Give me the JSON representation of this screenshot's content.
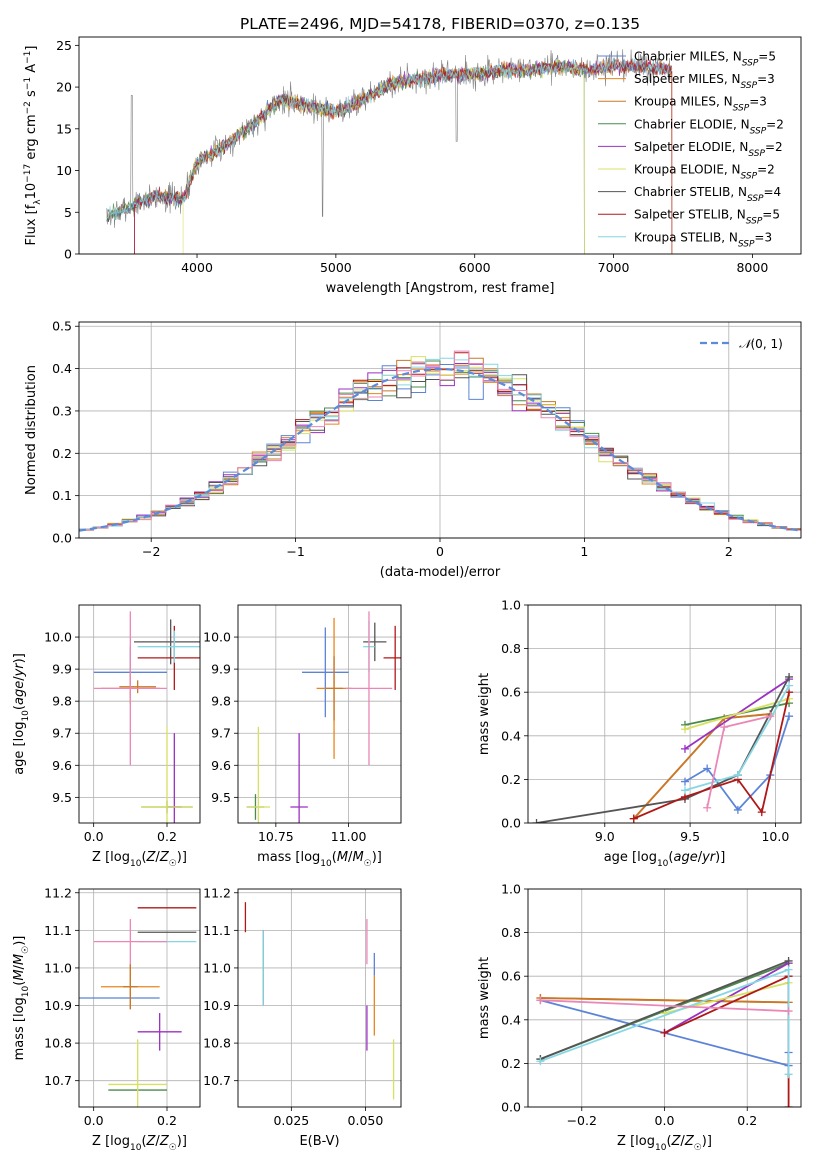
{
  "title": "PLATE=2496, MJD=54178, FIBERID=0370, z=0.135",
  "colors": {
    "chabrier_miles": "#5b84d8",
    "salpeter_miles": "#e8851e",
    "kroupa_miles": "#c8782a",
    "chabrier_elodie": "#4c8a4c",
    "salpeter_elodie": "#9b31c2",
    "kroupa_elodie": "#d8e060",
    "chabrier_stelib": "#555555",
    "salpeter_stelib": "#b01818",
    "kroupa_stelib": "#86d6e4",
    "pink": "#ea87b6",
    "normal": "#5b8bd9"
  },
  "chart_data": [
    {
      "id": "spectrum",
      "type": "line",
      "title": "PLATE=2496, MJD=54178, FIBERID=0370, z=0.135",
      "xlabel": "wavelength [Angstrom, rest frame]",
      "ylabel": "Flux [f_λ10^-17 erg cm^-2 s^-1 A^-1]",
      "xlim": [
        3150,
        8350
      ],
      "ylim": [
        0,
        26
      ],
      "xticks": [
        4000,
        5000,
        6000,
        7000,
        8000
      ],
      "yticks": [
        0,
        5,
        10,
        15,
        20,
        25
      ],
      "legend_position": "top-right",
      "legend": [
        {
          "label": "Chabrier MILES, N_SSP=5",
          "color_key": "chabrier_miles"
        },
        {
          "label": "Salpeter MILES, N_SSP=3",
          "color_key": "salpeter_miles"
        },
        {
          "label": "Kroupa MILES, N_SSP=3",
          "color_key": "kroupa_miles"
        },
        {
          "label": "Chabrier ELODIE, N_SSP=2",
          "color_key": "chabrier_elodie"
        },
        {
          "label": "Salpeter ELODIE, N_SSP=2",
          "color_key": "salpeter_elodie"
        },
        {
          "label": "Kroupa ELODIE, N_SSP=2",
          "color_key": "kroupa_elodie"
        },
        {
          "label": "Chabrier STELIB, N_SSP=4",
          "color_key": "chabrier_stelib"
        },
        {
          "label": "Salpeter STELIB, N_SSP=5",
          "color_key": "salpeter_stelib"
        },
        {
          "label": "Kroupa STELIB, N_SSP=3",
          "color_key": "kroupa_stelib"
        }
      ],
      "continuum_wavelength": [
        3350,
        3500,
        3700,
        3900,
        4000,
        4200,
        4400,
        4600,
        4800,
        5000,
        5200,
        5400,
        5600,
        5800,
        6000,
        6200,
        6400,
        6600,
        6800,
        7000,
        7200,
        7400
      ],
      "continuum_flux": [
        4.5,
        5.5,
        7.0,
        6.5,
        11.0,
        13.0,
        15.5,
        18.5,
        17.8,
        17.0,
        18.5,
        20.5,
        21.0,
        21.5,
        21.5,
        22.0,
        22.0,
        22.5,
        22.0,
        22.5,
        22.5,
        22.0
      ]
    },
    {
      "id": "residuals",
      "type": "step",
      "xlabel": "(data-model)/error",
      "ylabel": "Normed distribution",
      "xlim": [
        -2.5,
        2.5
      ],
      "ylim": [
        0,
        0.51
      ],
      "xticks": [
        -2,
        -1,
        0,
        1,
        2
      ],
      "yticks": [
        0.0,
        0.1,
        0.2,
        0.3,
        0.4,
        0.5
      ],
      "legend_position": "top-right",
      "legend": [
        {
          "label": "𝒩(0, 1)",
          "color_key": "normal"
        }
      ],
      "bin_width": 0.1,
      "grid": true
    },
    {
      "id": "age-vs-Z",
      "type": "errorbar",
      "xlabel": "Z [log10(Z/Z☉)]",
      "ylabel": "age [log10(age/yr)]",
      "xlim": [
        -0.04,
        0.29
      ],
      "ylim": [
        9.42,
        10.1
      ],
      "xticks": [
        0.0,
        0.2
      ],
      "yticks": [
        9.5,
        9.6,
        9.7,
        9.8,
        9.9,
        10.0
      ],
      "grid": true,
      "points": [
        {
          "color_key": "chabrier_miles",
          "x": 0.1,
          "xerr": 0.1,
          "y": 9.89,
          "yerr": 0.08
        },
        {
          "color_key": "salpeter_miles",
          "x": 0.1,
          "xerr": 0.08,
          "y": 9.84,
          "yerr": 0.05
        },
        {
          "color_key": "kroupa_miles",
          "x": 0.12,
          "xerr": 0.05,
          "y": 9.845,
          "yerr": 0.02
        },
        {
          "color_key": "chabrier_elodie",
          "x": 0.2,
          "xerr": 0.07,
          "y": 9.47,
          "yerr": 0.02
        },
        {
          "color_key": "salpeter_elodie",
          "x": 0.22,
          "xerr": 0.02,
          "y": 9.47,
          "yerr": 0.23
        },
        {
          "color_key": "kroupa_elodie",
          "x": 0.2,
          "xerr": 0.07,
          "y": 9.47,
          "yerr": 0.25
        },
        {
          "color_key": "chabrier_stelib",
          "x": 0.21,
          "xerr": 0.1,
          "y": 9.985,
          "yerr": 0.07
        },
        {
          "color_key": "salpeter_stelib",
          "x": 0.22,
          "xerr": 0.1,
          "y": 9.935,
          "yerr": 0.1
        },
        {
          "color_key": "kroupa_stelib",
          "x": 0.22,
          "xerr": 0.1,
          "y": 9.97,
          "yerr": 0.05
        },
        {
          "color_key": "pink",
          "x": 0.1,
          "xerr": 0.1,
          "y": 9.84,
          "yerr": 0.24
        }
      ]
    },
    {
      "id": "age-vs-mass",
      "type": "errorbar",
      "xlabel": "mass [log10(M/M☉)]",
      "xlim": [
        10.62,
        11.18
      ],
      "ylim": [
        9.42,
        10.1
      ],
      "xticks": [
        10.75,
        11.0
      ],
      "yticks": [
        9.5,
        9.6,
        9.7,
        9.8,
        9.9,
        10.0
      ],
      "grid": true,
      "points": [
        {
          "color_key": "chabrier_miles",
          "x": 10.92,
          "xerr": 0.08,
          "y": 9.89,
          "yerr": 0.14
        },
        {
          "color_key": "salpeter_miles",
          "x": 10.95,
          "xerr": 0.06,
          "y": 9.84,
          "yerr": 0.22
        },
        {
          "color_key": "kroupa_miles",
          "x": 10.95,
          "xerr": 0.03,
          "y": 9.84,
          "yerr": 0.1
        },
        {
          "color_key": "chabrier_elodie",
          "x": 10.68,
          "xerr": 0.03,
          "y": 9.47,
          "yerr": 0.04
        },
        {
          "color_key": "salpeter_elodie",
          "x": 10.83,
          "xerr": 0.03,
          "y": 9.47,
          "yerr": 0.23
        },
        {
          "color_key": "kroupa_elodie",
          "x": 10.69,
          "xerr": 0.04,
          "y": 9.47,
          "yerr": 0.25
        },
        {
          "color_key": "chabrier_stelib",
          "x": 11.09,
          "xerr": 0.04,
          "y": 9.985,
          "yerr": 0.06
        },
        {
          "color_key": "salpeter_stelib",
          "x": 11.16,
          "xerr": 0.04,
          "y": 9.935,
          "yerr": 0.1
        },
        {
          "color_key": "kroupa_stelib",
          "x": 11.07,
          "xerr": 0.02,
          "y": 9.97,
          "yerr": 0.08
        },
        {
          "color_key": "pink",
          "x": 11.07,
          "xerr": 0.08,
          "y": 9.84,
          "yerr": 0.24
        }
      ]
    },
    {
      "id": "weight-vs-age",
      "type": "line",
      "xlabel": "age [log10(age/yr)]",
      "ylabel": "mass weight",
      "xlim": [
        8.55,
        10.15
      ],
      "ylim": [
        0,
        1
      ],
      "xticks": [
        9.0,
        9.5,
        10.0
      ],
      "yticks": [
        0.0,
        0.2,
        0.4,
        0.6,
        0.8,
        1.0
      ],
      "grid": true,
      "series": [
        {
          "color_key": "chabrier_miles",
          "x": [
            9.47,
            9.6,
            9.78,
            9.97,
            10.08
          ],
          "y": [
            0.19,
            0.25,
            0.06,
            0.22,
            0.49
          ]
        },
        {
          "color_key": "salpeter_miles",
          "x": [
            9.17,
            9.7,
            9.97
          ],
          "y": [
            0.02,
            0.48,
            0.5
          ]
        },
        {
          "color_key": "kroupa_miles",
          "x": [
            9.17,
            9.7,
            9.97
          ],
          "y": [
            0.02,
            0.48,
            0.5
          ]
        },
        {
          "color_key": "chabrier_elodie",
          "x": [
            9.47,
            10.08
          ],
          "y": [
            0.45,
            0.55
          ]
        },
        {
          "color_key": "salpeter_elodie",
          "x": [
            9.47,
            10.08
          ],
          "y": [
            0.34,
            0.66
          ]
        },
        {
          "color_key": "kroupa_elodie",
          "x": [
            9.47,
            10.08
          ],
          "y": [
            0.43,
            0.57
          ]
        },
        {
          "color_key": "chabrier_stelib",
          "x": [
            8.6,
            9.47,
            9.78,
            10.08
          ],
          "y": [
            0.0,
            0.11,
            0.22,
            0.67
          ]
        },
        {
          "color_key": "salpeter_stelib",
          "x": [
            9.17,
            9.47,
            9.78,
            9.92,
            10.08
          ],
          "y": [
            0.02,
            0.12,
            0.2,
            0.05,
            0.6
          ]
        },
        {
          "color_key": "kroupa_stelib",
          "x": [
            9.47,
            9.78,
            10.08
          ],
          "y": [
            0.15,
            0.22,
            0.63
          ]
        },
        {
          "color_key": "pink",
          "x": [
            9.6,
            9.7,
            9.97
          ],
          "y": [
            0.07,
            0.44,
            0.49
          ]
        }
      ]
    },
    {
      "id": "mass-vs-Z",
      "type": "errorbar",
      "xlabel": "Z [log10(Z/Z☉)]",
      "ylabel": "mass [log10(M/M☉)]",
      "xlim": [
        -0.04,
        0.29
      ],
      "ylim": [
        10.63,
        11.21
      ],
      "xticks": [
        0.0,
        0.2
      ],
      "yticks": [
        10.7,
        10.8,
        10.9,
        11.0,
        11.1,
        11.2
      ],
      "grid": true,
      "points": [
        {
          "color_key": "chabrier_miles",
          "x": 0.07,
          "xerr": 0.11,
          "y": 10.92,
          "yerr": 0.0
        },
        {
          "color_key": "salpeter_miles",
          "x": 0.1,
          "xerr": 0.08,
          "y": 10.95,
          "yerr": 0.06
        },
        {
          "color_key": "kroupa_miles",
          "x": 0.1,
          "xerr": 0.02,
          "y": 10.95,
          "yerr": 0.06
        },
        {
          "color_key": "chabrier_elodie",
          "x": 0.12,
          "xerr": 0.08,
          "y": 10.675,
          "yerr": 0.0
        },
        {
          "color_key": "salpeter_elodie",
          "x": 0.18,
          "xerr": 0.06,
          "y": 10.83,
          "yerr": 0.05
        },
        {
          "color_key": "kroupa_elodie",
          "x": 0.12,
          "xerr": 0.08,
          "y": 10.69,
          "yerr": 0.12
        },
        {
          "color_key": "chabrier_stelib",
          "x": 0.2,
          "xerr": 0.08,
          "y": 11.095,
          "yerr": 0.0
        },
        {
          "color_key": "salpeter_stelib",
          "x": 0.2,
          "xerr": 0.08,
          "y": 11.16,
          "yerr": 0.0
        },
        {
          "color_key": "kroupa_stelib",
          "x": 0.2,
          "xerr": 0.08,
          "y": 11.07,
          "yerr": 0.0
        },
        {
          "color_key": "pink",
          "x": 0.1,
          "xerr": 0.1,
          "y": 11.07,
          "yerr": 0.06
        }
      ]
    },
    {
      "id": "mass-vs-ebv",
      "type": "errorbar",
      "xlabel": "E(B-V)",
      "xlim": [
        0.007,
        0.062
      ],
      "ylim": [
        10.63,
        11.21
      ],
      "xticks": [
        0.025,
        0.05
      ],
      "yticks": [
        10.7,
        10.8,
        10.9,
        11.0,
        11.1,
        11.2
      ],
      "grid": true,
      "points": [
        {
          "color_key": "salpeter_stelib",
          "x": 0.0095,
          "y": 11.135,
          "yerr": 0.04
        },
        {
          "color_key": "chabrier_stelib",
          "x": 0.0155,
          "y": 11.0,
          "yerr": 0.1
        },
        {
          "color_key": "kroupa_stelib",
          "x": 0.0155,
          "y": 11.0,
          "yerr": 0.1
        },
        {
          "color_key": "pink",
          "x": 0.0505,
          "y": 11.07,
          "yerr": 0.06
        },
        {
          "color_key": "salpeter_elodie",
          "x": 0.0505,
          "y": 10.84,
          "yerr": 0.06
        },
        {
          "color_key": "chabrier_miles",
          "x": 0.053,
          "y": 11.01,
          "yerr": 0.03
        },
        {
          "color_key": "salpeter_miles",
          "x": 0.053,
          "y": 10.9,
          "yerr": 0.08
        },
        {
          "color_key": "kroupa_elodie",
          "x": 0.0595,
          "y": 10.73,
          "yerr": 0.08
        }
      ]
    },
    {
      "id": "weight-vs-Z",
      "type": "line",
      "xlabel": "Z [log10(Z/Z☉)]",
      "ylabel": "mass weight",
      "xlim": [
        -0.33,
        0.33
      ],
      "ylim": [
        0,
        1
      ],
      "xticks": [
        -0.2,
        0.0,
        0.2
      ],
      "yticks": [
        0.0,
        0.2,
        0.4,
        0.6,
        0.8,
        1.0
      ],
      "grid": true,
      "series": [
        {
          "color_key": "chabrier_miles",
          "x": [
            -0.3,
            0.3,
            0.3
          ],
          "y": [
            0.49,
            0.19,
            0.25
          ]
        },
        {
          "color_key": "salpeter_miles",
          "x": [
            -0.3,
            0.3
          ],
          "y": [
            0.5,
            0.48
          ]
        },
        {
          "color_key": "kroupa_miles",
          "x": [
            -0.3,
            0.3
          ],
          "y": [
            0.5,
            0.48
          ]
        },
        {
          "color_key": "chabrier_elodie",
          "x": [
            -0.3,
            0.3
          ],
          "y": [
            0.22,
            0.66
          ]
        },
        {
          "color_key": "salpeter_elodie",
          "x": [
            0.0,
            0.3
          ],
          "y": [
            0.34,
            0.66
          ]
        },
        {
          "color_key": "kroupa_elodie",
          "x": [
            0.0,
            0.3
          ],
          "y": [
            0.43,
            0.57
          ]
        },
        {
          "color_key": "chabrier_stelib",
          "x": [
            -0.3,
            0.3
          ],
          "y": [
            0.22,
            0.67
          ]
        },
        {
          "color_key": "salpeter_stelib",
          "x": [
            0.0,
            0.3,
            0.3
          ],
          "y": [
            0.34,
            0.6,
            0.0
          ]
        },
        {
          "color_key": "kroupa_stelib",
          "x": [
            -0.3,
            0.3,
            0.3
          ],
          "y": [
            0.21,
            0.63,
            0.15
          ]
        },
        {
          "color_key": "pink",
          "x": [
            -0.3,
            0.3
          ],
          "y": [
            0.49,
            0.44
          ]
        }
      ]
    }
  ]
}
